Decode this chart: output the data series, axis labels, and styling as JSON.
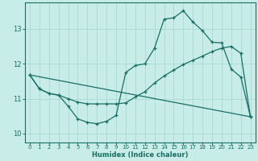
{
  "title": "",
  "xlabel": "Humidex (Indice chaleur)",
  "bg_color": "#c8ece8",
  "grid_color": "#a8d8d4",
  "line_color": "#1a6e64",
  "xlim": [
    -0.5,
    23.5
  ],
  "ylim": [
    9.75,
    13.75
  ],
  "xticks": [
    0,
    1,
    2,
    3,
    4,
    5,
    6,
    7,
    8,
    9,
    10,
    11,
    12,
    13,
    14,
    15,
    16,
    17,
    18,
    19,
    20,
    21,
    22,
    23
  ],
  "yticks": [
    10,
    11,
    12,
    13
  ],
  "line1_x": [
    0,
    1,
    2,
    3,
    4,
    5,
    6,
    7,
    8,
    9,
    10,
    11,
    12,
    13,
    14,
    15,
    16,
    17,
    18,
    19,
    20,
    21,
    22,
    23
  ],
  "line1_y": [
    11.68,
    11.28,
    11.15,
    11.1,
    10.78,
    10.42,
    10.32,
    10.28,
    10.35,
    10.52,
    11.75,
    11.95,
    12.0,
    12.45,
    13.28,
    13.32,
    13.52,
    13.2,
    12.95,
    12.62,
    12.6,
    11.85,
    11.62,
    10.48
  ],
  "line2_x": [
    0,
    1,
    2,
    3,
    4,
    5,
    6,
    7,
    8,
    9,
    10,
    11,
    12,
    13,
    14,
    15,
    16,
    17,
    18,
    19,
    20,
    21,
    22,
    23
  ],
  "line2_y": [
    11.68,
    11.28,
    11.15,
    11.1,
    11.0,
    10.9,
    10.85,
    10.85,
    10.85,
    10.85,
    10.88,
    11.05,
    11.2,
    11.45,
    11.65,
    11.82,
    11.98,
    12.1,
    12.22,
    12.35,
    12.45,
    12.5,
    12.3,
    10.48
  ],
  "line3_x": [
    0,
    23
  ],
  "line3_y": [
    11.68,
    10.48
  ]
}
